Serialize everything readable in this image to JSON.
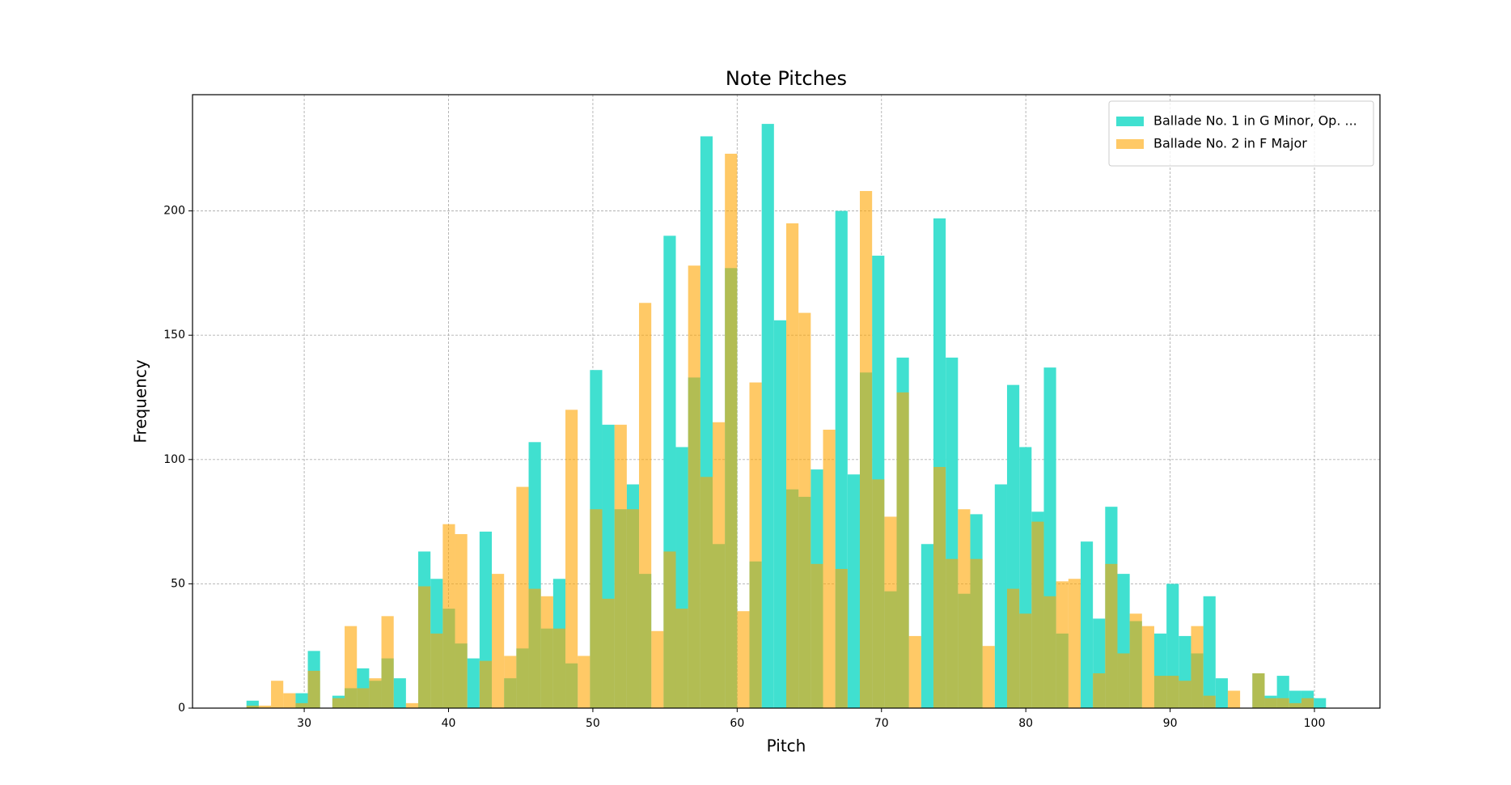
{
  "chart_data": {
    "type": "histogram",
    "title": "Note Pitches",
    "xlabel": "Pitch",
    "ylabel": "Frequency",
    "bins": [
      26,
      26.85,
      27.7,
      28.55,
      29.4,
      30.25,
      31.1,
      31.95,
      32.8,
      33.65,
      34.5,
      35.35,
      36.2,
      37.05,
      37.9,
      38.75,
      39.6,
      40.45,
      41.3,
      42.15,
      43,
      43.85,
      44.7,
      45.55,
      46.4,
      47.25,
      48.1,
      48.95,
      49.8,
      50.65,
      51.5,
      52.35,
      53.2,
      54.05,
      54.9,
      55.75,
      56.6,
      57.45,
      58.3,
      59.15,
      60,
      60.85,
      61.7,
      62.55,
      63.4,
      64.25,
      65.1,
      65.95,
      66.8,
      67.65,
      68.5,
      69.35,
      70.2,
      71.05,
      71.9,
      72.75,
      73.6,
      74.45,
      75.3,
      76.15,
      77,
      77.85,
      78.7,
      79.55,
      80.4,
      81.25,
      82.1,
      82.95,
      83.8,
      84.65,
      85.5,
      86.35,
      87.2,
      88.05,
      88.9,
      89.75,
      90.6,
      91.45,
      92.3,
      93.15,
      94,
      94.85,
      95.7,
      96.55,
      97.4,
      98.25,
      99.1,
      99.95,
      100.8
    ],
    "series": [
      {
        "name": "Ballade No. 1 in G Minor, Op. ...",
        "color": "#40e0d0",
        "opacity": 1,
        "values": [
          3,
          0,
          0,
          0,
          6,
          23,
          0,
          5,
          8,
          16,
          11,
          20,
          12,
          0,
          63,
          52,
          40,
          26,
          20,
          71,
          0,
          12,
          24,
          107,
          32,
          52,
          18,
          0,
          136,
          114,
          80,
          90,
          54,
          0,
          190,
          105,
          133,
          230,
          66,
          177,
          0,
          59,
          235,
          156,
          88,
          85,
          96,
          0,
          200,
          94,
          135,
          182,
          47,
          141,
          0,
          66,
          197,
          141,
          46,
          78,
          0,
          90,
          130,
          105,
          79,
          137,
          30,
          0,
          67,
          36,
          81,
          54,
          35,
          0,
          30,
          50,
          29,
          22,
          45,
          12,
          0,
          0,
          14,
          5,
          13,
          7,
          7,
          4
        ]
      },
      {
        "name": "Ballade No. 2 in F Major",
        "color": "#ffa500",
        "opacity": 0.6,
        "values": [
          1,
          1,
          11,
          6,
          2,
          15,
          0,
          4,
          33,
          8,
          12,
          37,
          0,
          2,
          49,
          30,
          74,
          70,
          0,
          19,
          54,
          21,
          89,
          48,
          45,
          32,
          120,
          21,
          80,
          44,
          114,
          80,
          163,
          31,
          63,
          40,
          178,
          93,
          115,
          223,
          39,
          131,
          0,
          0,
          195,
          159,
          58,
          112,
          56,
          0,
          208,
          92,
          77,
          127,
          29,
          0,
          97,
          60,
          80,
          60,
          25,
          0,
          48,
          38,
          75,
          45,
          51,
          52,
          0,
          14,
          58,
          22,
          38,
          33,
          13,
          13,
          11,
          33,
          5,
          0,
          7,
          0,
          14,
          4,
          4,
          2,
          4,
          0
        ]
      }
    ],
    "xlim": [
      22.26,
      104.54
    ],
    "ylim": [
      0,
      246.75
    ],
    "xticks": [
      30,
      40,
      50,
      60,
      70,
      80,
      90,
      100
    ],
    "yticks": [
      0,
      50,
      100,
      150,
      200
    ],
    "grid": true,
    "legend": "upper right"
  }
}
